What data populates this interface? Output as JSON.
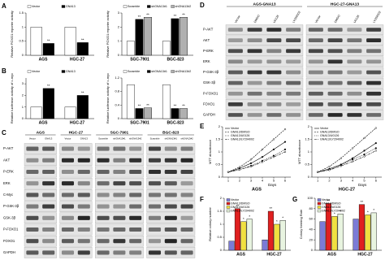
{
  "panel_labels": [
    "A",
    "B",
    "C",
    "D",
    "E",
    "F",
    "G"
  ],
  "chart_data": [
    {
      "type": "bar",
      "ylabel": "Relative FOXO1 reporter activity",
      "categories": [
        "AGS",
        "HGC-27"
      ],
      "series": [
        {
          "name": "Vector",
          "color": "#ffffff",
          "values": [
            1,
            1
          ]
        },
        {
          "name": "GNA13",
          "color": "#000000",
          "values": [
            0.42,
            0.45
          ],
          "significance": [
            "**",
            "**"
          ]
        }
      ],
      "ylim": [
        0,
        1.5
      ],
      "yticks": [
        0,
        0.5,
        1,
        1.5
      ]
    },
    {
      "type": "bar",
      "ylabel": "Relative FOXO1 reporter activity",
      "categories": [
        "SGC-7901",
        "BGC-823"
      ],
      "series": [
        {
          "name": "Scramble",
          "color": "#ffffff",
          "values": [
            1,
            1
          ]
        },
        {
          "name": "shGNA13#1",
          "color": "#000000",
          "values": [
            2.55,
            2.6
          ],
          "significance": [
            "**",
            "**"
          ]
        },
        {
          "name": "shGNA13#2",
          "color": "#b0b0b0",
          "values": [
            2.7,
            2.7
          ],
          "significance": [
            "**",
            "**"
          ]
        }
      ],
      "ylim": [
        0,
        3
      ],
      "yticks": [
        0,
        1,
        2,
        3
      ]
    },
    {
      "type": "bar",
      "ylabel": "Relative luciferase activity of c-myc",
      "categories": [
        "AGS",
        "HGC-27"
      ],
      "series": [
        {
          "name": "Vector",
          "color": "#ffffff",
          "values": [
            1,
            1
          ]
        },
        {
          "name": "GNA13",
          "color": "#000000",
          "values": [
            2.6,
            2.0
          ],
          "significance": [
            "**",
            "**"
          ]
        }
      ],
      "ylim": [
        0,
        3.5
      ],
      "yticks": [
        0,
        1,
        2,
        3
      ]
    },
    {
      "type": "bar",
      "ylabel": "Relative luciferase activity of c-myc",
      "categories": [
        "SGC-7901",
        "BGC-823"
      ],
      "series": [
        {
          "name": "Scramble",
          "color": "#ffffff",
          "values": [
            1,
            1
          ]
        },
        {
          "name": "shGNA13#1",
          "color": "#000000",
          "values": [
            0.3,
            0.3
          ],
          "significance": [
            "**",
            "**"
          ]
        },
        {
          "name": "shGNA13#2",
          "color": "#b0b0b0",
          "values": [
            0.32,
            0.3
          ],
          "significance": [
            "**",
            "**"
          ]
        }
      ],
      "ylim": [
        0,
        1.2
      ],
      "yticks": [
        0,
        0.4,
        0.8,
        1.2
      ]
    },
    {
      "type": "line",
      "title": "AGS",
      "ylabel": "MTT absorbance",
      "xlabel": "Days",
      "x": [
        1,
        2,
        3,
        4,
        5,
        6
      ],
      "series": [
        {
          "name": "Vector",
          "color": "#000000",
          "values": [
            0.2,
            0.35,
            0.55,
            0.8,
            1.1,
            1.4
          ]
        },
        {
          "name": "GNA13/DMSO",
          "color": "#000000",
          "values": [
            0.2,
            0.4,
            0.7,
            1.1,
            1.5,
            1.9
          ]
        },
        {
          "name": "GNA13/U0126",
          "color": "#000000",
          "values": [
            0.2,
            0.3,
            0.45,
            0.65,
            0.85,
            1.1
          ]
        },
        {
          "name": "GNA13/LY294002",
          "color": "#000000",
          "values": [
            0.2,
            0.3,
            0.42,
            0.6,
            0.8,
            1.0
          ]
        }
      ],
      "xlim": [
        0.5,
        6.5
      ],
      "xticks": [
        1,
        2,
        3,
        4,
        5,
        6
      ],
      "ylim": [
        0,
        2
      ],
      "yticks": [
        0,
        0.5,
        1,
        1.5,
        2
      ]
    },
    {
      "type": "line",
      "title": "HGC-27",
      "ylabel": "MTT absorbance",
      "xlabel": "Days",
      "x": [
        1,
        2,
        3,
        4,
        5,
        6
      ],
      "series": [
        {
          "name": "Vector",
          "color": "#000000",
          "values": [
            0.2,
            0.33,
            0.5,
            0.75,
            1.05,
            1.35
          ]
        },
        {
          "name": "GNA13/DMSO",
          "color": "#000000",
          "values": [
            0.2,
            0.42,
            0.75,
            1.15,
            1.55,
            1.95
          ]
        },
        {
          "name": "GNA13/U0126",
          "color": "#000000",
          "values": [
            0.2,
            0.3,
            0.48,
            0.7,
            0.9,
            1.15
          ]
        },
        {
          "name": "GNA13/LY294002",
          "color": "#000000",
          "values": [
            0.2,
            0.28,
            0.44,
            0.62,
            0.82,
            1.05
          ]
        }
      ],
      "xlim": [
        0.5,
        6.5
      ],
      "xticks": [
        1,
        2,
        3,
        4,
        5,
        6
      ],
      "ylim": [
        0,
        2
      ],
      "yticks": [
        0,
        0.5,
        1,
        1.5,
        2
      ]
    },
    {
      "type": "bar",
      "ylabel": "Relative colony number",
      "categories": [
        "AGS",
        "HGC-27"
      ],
      "series": [
        {
          "name": "Vector",
          "color": "#7b7bd6",
          "values": [
            0.35,
            0.4
          ]
        },
        {
          "name": "GNA13/DMSO",
          "color": "#e02020",
          "values": [
            1.6,
            1.5
          ],
          "significance": [
            "**",
            "**"
          ]
        },
        {
          "name": "GNA13/U0126",
          "color": "#f0e040",
          "values": [
            1.1,
            1.0
          ],
          "significance": [
            "*",
            "*"
          ]
        },
        {
          "name": "GNA13/LY294002",
          "color": "#e8f4e0",
          "values": [
            1.2,
            1.15
          ],
          "significance": [
            "*",
            "*"
          ]
        }
      ],
      "ylim": [
        0,
        2
      ],
      "yticks": [
        0,
        0.5,
        1,
        1.5,
        2
      ]
    },
    {
      "type": "bar",
      "ylabel": "Colony forming Rate",
      "categories": [
        "AGS",
        "HGC-27"
      ],
      "series": [
        {
          "name": "Vector",
          "color": "#7b7bd6",
          "values": [
            55,
            60
          ]
        },
        {
          "name": "GNA13/DMSO",
          "color": "#e02020",
          "values": [
            90,
            88
          ],
          "significance": [
            "**",
            "**"
          ]
        },
        {
          "name": "GNA13/U0126",
          "color": "#f0e040",
          "values": [
            65,
            68
          ],
          "significance": [
            "*",
            "*"
          ]
        },
        {
          "name": "GNA13/LY294002",
          "color": "#e8f4e0",
          "values": [
            70,
            72
          ],
          "significance": [
            "*",
            "*"
          ]
        }
      ],
      "ylim": [
        0,
        100
      ],
      "yticks": [
        0,
        20,
        40,
        60,
        80,
        100
      ]
    }
  ],
  "blots": [
    {
      "groups": [
        {
          "name": "AGS",
          "lanes": [
            "Vector",
            "GNA13"
          ]
        },
        {
          "name": "HGC-27",
          "lanes": [
            "Vector",
            "GNA13"
          ]
        },
        {
          "name": "SGC-7901",
          "lanes": [
            "Scramble",
            "shGNA13#1",
            "shGNA13#2"
          ]
        },
        {
          "name": "BGC-823",
          "lanes": [
            "Scramble",
            "shGNA13#1",
            "shGNA13#2"
          ]
        }
      ],
      "rows": [
        "P-AKT",
        "AKT",
        "P-ERK",
        "ERK",
        "C-Myc",
        "P-GSK-3β",
        "GSK-3β",
        "P-FOXO1",
        "FOXO1",
        "GAPDH"
      ]
    },
    {
      "groups": [
        {
          "name": "AGS-GNA13",
          "lanes": [
            "Vector",
            "DMSO",
            "U0126",
            "LY294002"
          ]
        },
        {
          "name": "HGC-27-GNA13",
          "lanes": [
            "Vector",
            "DMSO",
            "U0126",
            "LY294002"
          ]
        }
      ],
      "rows": [
        "P-AKT",
        "AKT",
        "P-ERK",
        "ERK",
        "P-GSK-3β",
        "GSK-3β",
        "P-FOXO1",
        "FOXO1",
        "GAPDH"
      ]
    }
  ]
}
